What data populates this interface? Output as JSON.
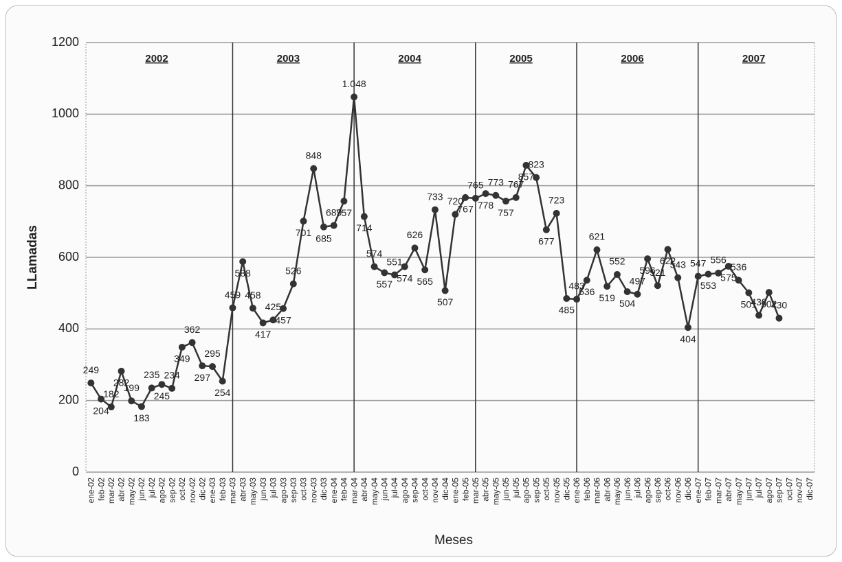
{
  "chart_data": {
    "type": "line",
    "x_label": "Meses",
    "y_label": "LLamadas",
    "year_labels": [
      "2002",
      "2003",
      "2004",
      "2005",
      "2006",
      "2007"
    ],
    "categories": [
      "ene-02",
      "feb-02",
      "mar-02",
      "abr-02",
      "may-02",
      "jun-02",
      "jul-02",
      "ago-02",
      "sep-02",
      "oct-02",
      "nov-02",
      "dic-02",
      "ene-03",
      "feb-03",
      "mar-03",
      "abr-03",
      "may-03",
      "jun-03",
      "jul-03",
      "ago-03",
      "sep-03",
      "oct-03",
      "nov-03",
      "dic-03",
      "ene-04",
      "feb-04",
      "mar-04",
      "abr-04",
      "may-04",
      "jun-04",
      "jul-04",
      "ago-04",
      "sep-04",
      "oct-04",
      "nov-04",
      "dic-04",
      "ene-05",
      "feb-05",
      "mar-05",
      "abr-05",
      "may-05",
      "jun-05",
      "jul-05",
      "ago-05",
      "sep-05",
      "oct-05",
      "nov-05",
      "dic-05",
      "ene-06",
      "feb-06",
      "mar-06",
      "abr-06",
      "may-06",
      "jun-06",
      "jul-06",
      "ago-06",
      "sep-06",
      "oct-06",
      "nov-06",
      "dic-06",
      "ene-07",
      "feb-07",
      "mar-07",
      "abr-07",
      "may-07",
      "jun-07",
      "jul-07",
      "ago-07",
      "sep-07",
      "oct-07",
      "nov-07",
      "dic-07"
    ],
    "series": [
      {
        "name": "LLamadas",
        "color": "#333333",
        "values": [
          249,
          204,
          182,
          282,
          199,
          183,
          235,
          245,
          234,
          349,
          362,
          297,
          295,
          254,
          459,
          588,
          458,
          417,
          425,
          457,
          526,
          701,
          848,
          685,
          689,
          757,
          1048,
          714,
          574,
          557,
          551,
          574,
          626,
          565,
          733,
          507,
          720,
          767,
          765,
          778,
          773,
          757,
          767,
          857,
          823,
          677,
          723,
          485,
          483,
          536,
          621,
          519,
          552,
          504,
          497,
          596,
          521,
          622,
          543,
          404,
          547,
          553,
          556,
          575,
          536,
          501,
          438,
          502,
          430,
          null,
          null,
          null
        ],
        "value_labels": [
          "249",
          "204",
          "182",
          "282",
          "199",
          "183",
          "235",
          "245",
          "234",
          "349",
          "362",
          "297",
          "295",
          "254",
          "459",
          "588",
          "458",
          "417",
          "425",
          "457",
          "526",
          "701",
          "848",
          "685",
          "689",
          "757",
          "1.048",
          "714",
          "574",
          "557",
          "551",
          "574",
          "626",
          "565",
          "733",
          "507",
          "720",
          "767",
          "765",
          "778",
          "773",
          "757",
          "767",
          "857",
          "823",
          "677",
          "723",
          "485",
          "483",
          "536",
          "621",
          "519",
          "552",
          "504",
          "497",
          "596",
          "521",
          "622",
          "543",
          "404",
          "547",
          "553",
          "556",
          "575",
          "536",
          "501",
          "438",
          "502",
          "430",
          null,
          null,
          null
        ]
      }
    ],
    "ylim": [
      0,
      1200
    ],
    "yticks": [
      0,
      200,
      400,
      600,
      800,
      1000,
      1200
    ],
    "grid": true
  }
}
